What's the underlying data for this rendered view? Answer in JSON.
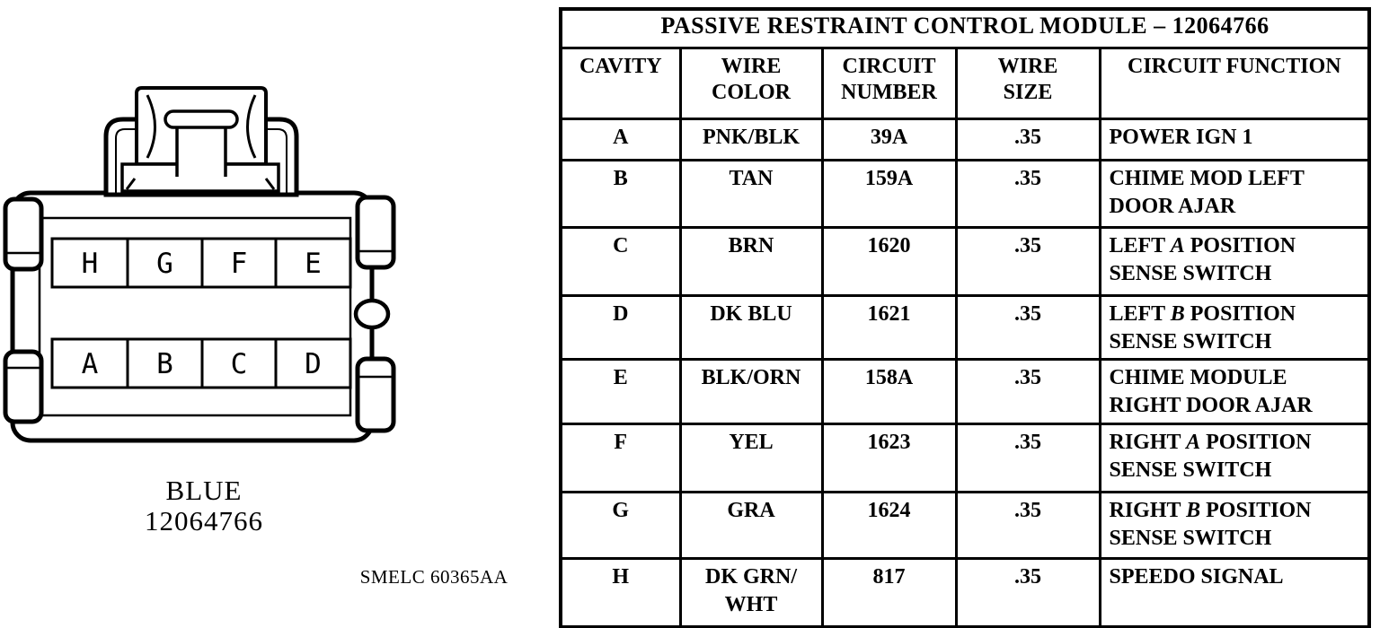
{
  "diagram": {
    "connector_color_label": "BLUE",
    "connector_part_number": "12064766",
    "reference_code": "SMELC 60365AA",
    "top_row_pins": [
      "H",
      "G",
      "F",
      "E"
    ],
    "bottom_row_pins": [
      "A",
      "B",
      "C",
      "D"
    ]
  },
  "table": {
    "title": "PASSIVE RESTRAINT CONTROL MODULE – 12064766",
    "columns": {
      "cavity": "CAVITY",
      "wire_color": "WIRE\nCOLOR",
      "circuit_number": "CIRCUIT\nNUMBER",
      "wire_size": "WIRE\nSIZE",
      "circuit_function": "CIRCUIT FUNCTION"
    },
    "rows": [
      {
        "cavity": "A",
        "wire_color": "PNK/BLK",
        "circuit_number": "39A",
        "wire_size": ".35",
        "circuit_function": "POWER IGN 1"
      },
      {
        "cavity": "B",
        "wire_color": "TAN",
        "circuit_number": "159A",
        "wire_size": ".35",
        "circuit_function": "CHIME MOD LEFT\nDOOR AJAR"
      },
      {
        "cavity": "C",
        "wire_color": "BRN",
        "circuit_number": "1620",
        "wire_size": ".35",
        "circuit_function": "LEFT *A* POSITION\nSENSE SWITCH"
      },
      {
        "cavity": "D",
        "wire_color": "DK BLU",
        "circuit_number": "1621",
        "wire_size": ".35",
        "circuit_function": "LEFT *B* POSITION\nSENSE SWITCH"
      },
      {
        "cavity": "E",
        "wire_color": "BLK/ORN",
        "circuit_number": "158A",
        "wire_size": ".35",
        "circuit_function": "CHIME MODULE\nRIGHT DOOR AJAR"
      },
      {
        "cavity": "F",
        "wire_color": "YEL",
        "circuit_number": "1623",
        "wire_size": ".35",
        "circuit_function": "RIGHT *A* POSITION\nSENSE SWITCH"
      },
      {
        "cavity": "G",
        "wire_color": "GRA",
        "circuit_number": "1624",
        "wire_size": ".35",
        "circuit_function": "RIGHT *B* POSITION\nSENSE SWITCH"
      },
      {
        "cavity": "H",
        "wire_color": "DK GRN/\nWHT",
        "circuit_number": "817",
        "wire_size": ".35",
        "circuit_function": "SPEEDO SIGNAL"
      }
    ]
  },
  "colors": {
    "ink": "#000000",
    "paper": "#ffffff"
  }
}
